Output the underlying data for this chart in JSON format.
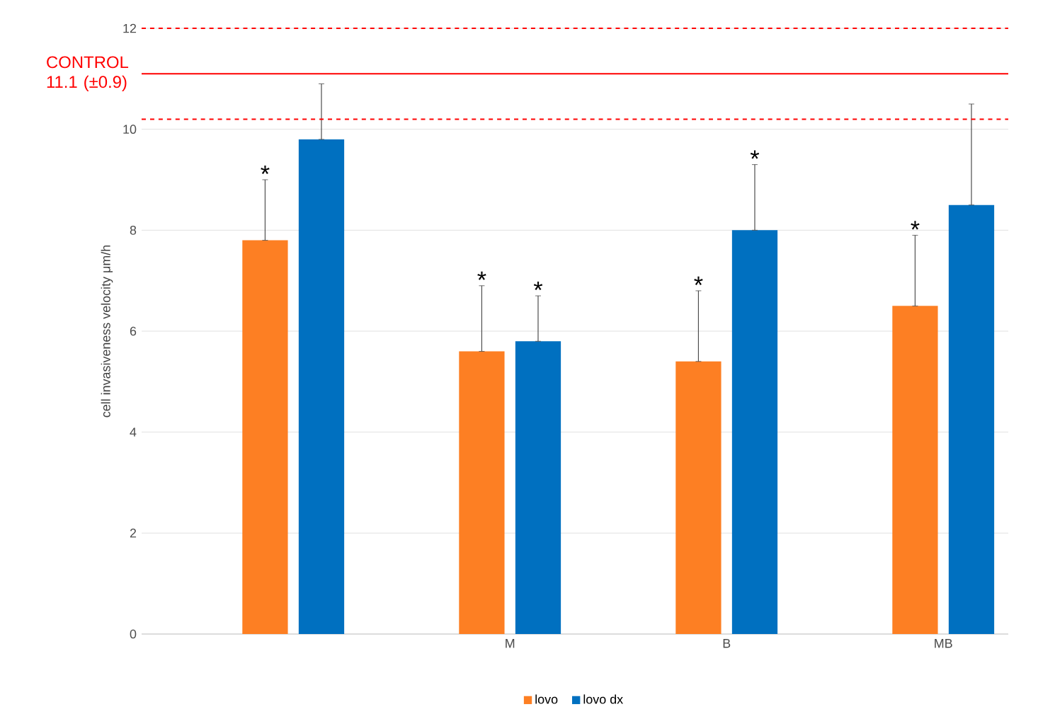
{
  "chart_data": {
    "type": "bar",
    "ylabel": "cell invasiveness velocity μm/h",
    "categories": [
      null,
      "M",
      "B",
      "MB"
    ],
    "series": [
      {
        "name": "lovo",
        "color": "#fd7f23",
        "values": [
          7.8,
          5.6,
          5.4,
          6.5
        ],
        "errors": [
          [
            7.8,
            9.0
          ],
          [
            5.6,
            6.9
          ],
          [
            5.4,
            6.8
          ],
          [
            6.5,
            7.9
          ]
        ],
        "value_labels": [
          "*",
          "*",
          "*",
          "*"
        ]
      },
      {
        "name": "lovo dx",
        "color": "#0070c0",
        "values": [
          9.8,
          5.8,
          8.0,
          8.5
        ],
        "errors": [
          [
            9.8,
            10.9
          ],
          [
            5.8,
            6.7
          ],
          [
            8.0,
            9.3
          ],
          [
            8.5,
            10.5
          ]
        ],
        "value_labels": [
          null,
          "*",
          "*",
          null
        ]
      }
    ],
    "ylim": [
      0,
      12
    ],
    "yticks": [
      0,
      2,
      4,
      6,
      8,
      10,
      12
    ],
    "grid": "y",
    "legend": "bottom",
    "ref_lines": [
      {
        "axis": "y",
        "value": 11.1,
        "label": "CONTROL 11.1 (±0.9)",
        "color": "#ff0000",
        "line_style": "solid"
      },
      {
        "axis": "y",
        "value": 12.0,
        "color": "#ff0000",
        "line_style": "dashed"
      },
      {
        "axis": "y",
        "value": 10.2,
        "color": "#ff0000",
        "line_style": "dashed"
      }
    ]
  }
}
